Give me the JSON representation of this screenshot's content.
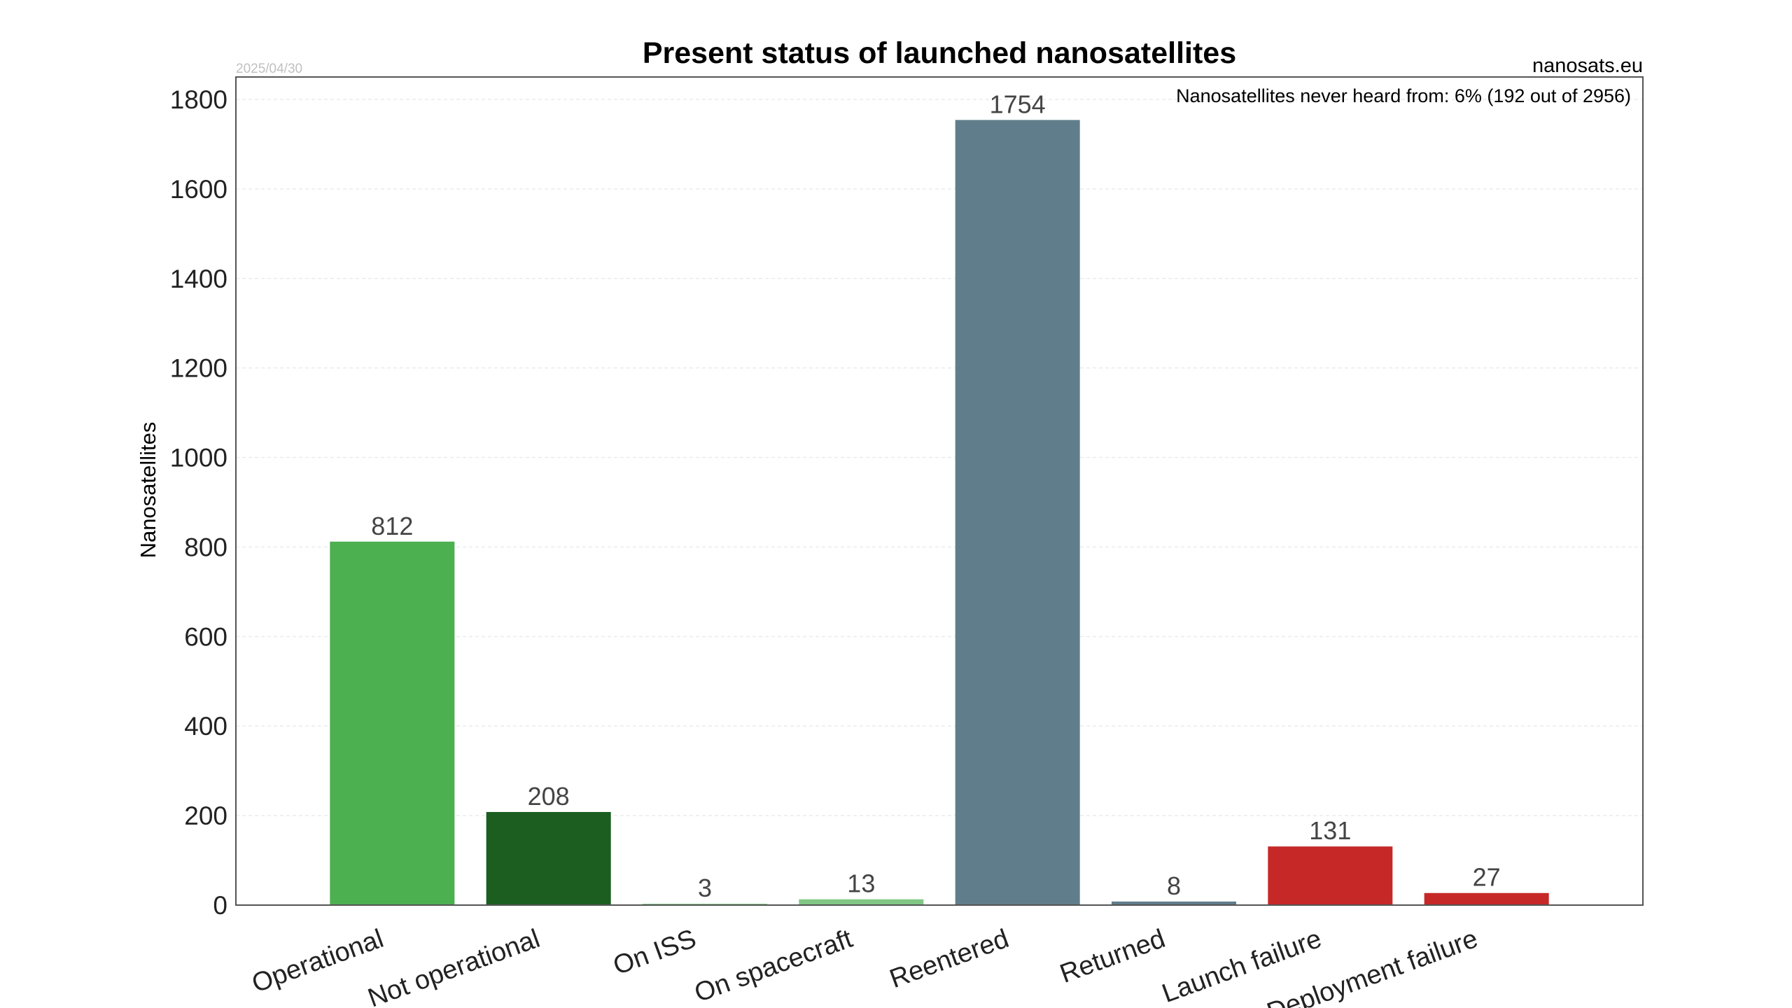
{
  "chart_data": {
    "type": "bar",
    "title": "Present status of launched nanosatellites",
    "date": "2025/04/30",
    "source": "nanosats.eu",
    "annotation": "Nanosatellites never heard from: 6% (192 out of 2956)",
    "xlabel": "",
    "ylabel": "Nanosatellites",
    "ylim": [
      0,
      1850
    ],
    "yticks": [
      0,
      200,
      400,
      600,
      800,
      1000,
      1200,
      1400,
      1600,
      1800
    ],
    "grid": true,
    "categories": [
      "Operational",
      "Not operational",
      "On ISS",
      "On spacecraft",
      "Reentered",
      "Returned",
      "Launch failure",
      "Deployment failure"
    ],
    "values": [
      812,
      208,
      3,
      13,
      1754,
      8,
      131,
      27
    ],
    "colors": [
      "#4caf50",
      "#1b5e20",
      "#81c784",
      "#81c784",
      "#607d8b",
      "#607d8b",
      "#c62828",
      "#c62828"
    ]
  }
}
